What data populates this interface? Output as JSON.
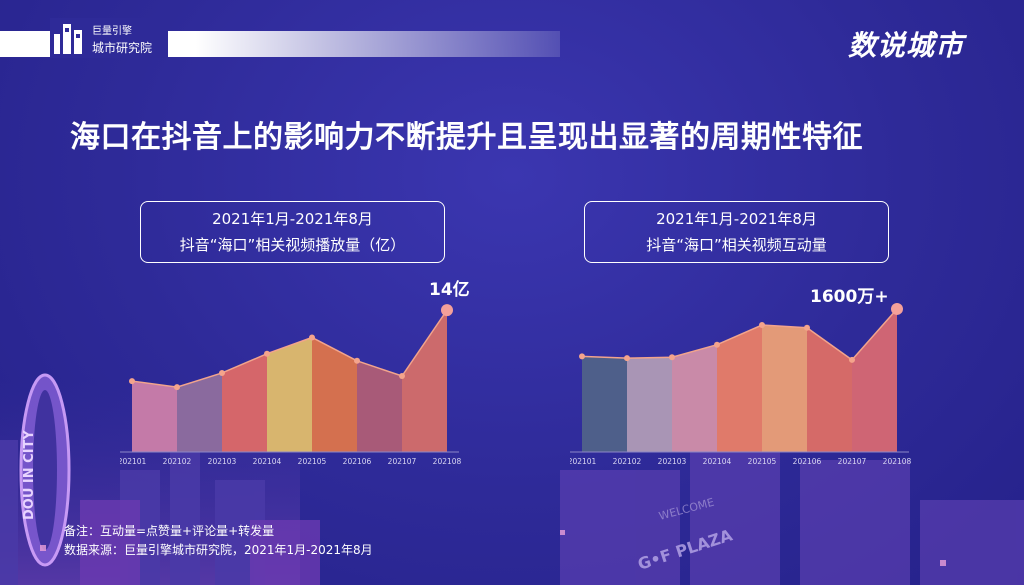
{
  "header": {
    "logo_line1": "巨量引擎",
    "logo_line2": "城市研究院",
    "brand": "数说城市"
  },
  "title": "海口在抖音上的影响力不断提升且呈现出显著的周期性特征",
  "chart_data": [
    {
      "type": "area",
      "box_line1": "2021年1月-2021年8月",
      "box_line2": "抖音“海口”相关视频播放量（亿）",
      "callout": "14亿",
      "categories": [
        "202101",
        "202102",
        "202103",
        "202104",
        "202105",
        "202106",
        "202107",
        "202108"
      ],
      "values": [
        7.0,
        6.4,
        7.8,
        9.7,
        11.3,
        9.0,
        7.5,
        14.0
      ],
      "ylim": [
        0,
        15
      ],
      "colors": [
        "#c47aa8",
        "#8a6a9e",
        "#d5666a",
        "#d8b56e",
        "#d4704f",
        "#a85a78",
        "#cc6a6c",
        "#9aa0c8"
      ]
    },
    {
      "type": "area",
      "box_line1": "2021年1月-2021年8月",
      "box_line2": "抖音“海口”相关视频互动量",
      "callout": "1600万+",
      "categories": [
        "202101",
        "202102",
        "202103",
        "202104",
        "202105",
        "202106",
        "202107",
        "202108"
      ],
      "values": [
        1070,
        1050,
        1060,
        1200,
        1420,
        1390,
        1030,
        1600
      ],
      "ylim": [
        0,
        1700
      ],
      "colors": [
        "#4e5f8a",
        "#a995b5",
        "#c98aa8",
        "#e07a6a",
        "#e39a78",
        "#d56a68",
        "#cf6574",
        "#d9c77a"
      ]
    }
  ],
  "notes": {
    "line1": "备注：互动量=点赞量+评论量+转发量",
    "line2": "数据来源：巨量引擎城市研究院，2021年1月-2021年8月"
  },
  "bg_text": {
    "dou": "DOU IN CITY",
    "welcome": "WELCOME",
    "plaza": "G•F PLAZA"
  }
}
